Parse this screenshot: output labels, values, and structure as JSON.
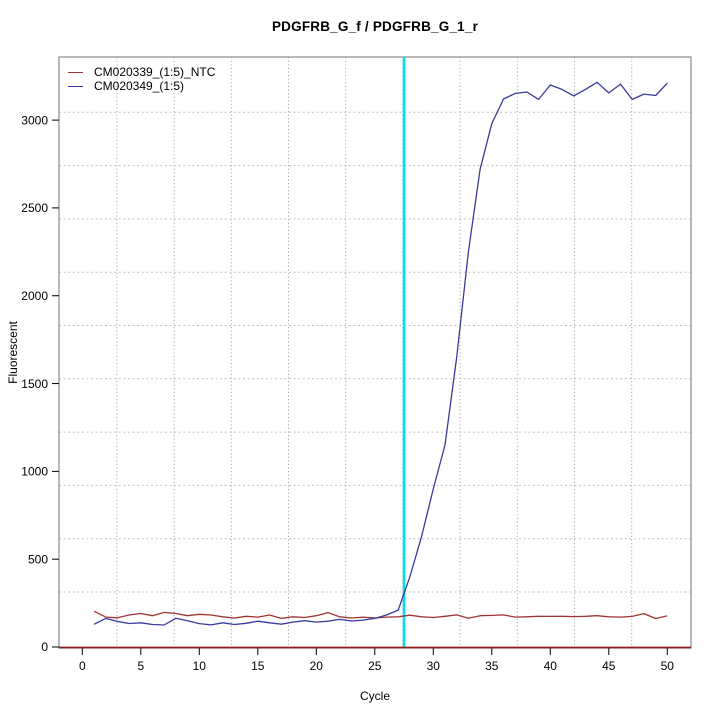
{
  "chart_data": {
    "type": "line",
    "title": "PDGFRB_G_f / PDGFRB_G_1_r",
    "xlabel": "Cycle",
    "ylabel": "Fluorescent",
    "xlim": [
      -2,
      52
    ],
    "ylim": [
      -30,
      3360
    ],
    "x_ticks": [
      0,
      5,
      10,
      15,
      20,
      25,
      30,
      35,
      40,
      45,
      50
    ],
    "y_ticks": [
      0,
      500,
      1000,
      1500,
      2000,
      2500,
      3000
    ],
    "grid": "dotted light-gray gridlines in both directions, not aligned with axis ticks",
    "legend_position": "top-left-inside",
    "threshold_line": {
      "orientation": "vertical",
      "x": 27.5,
      "color": "#00e0ea"
    },
    "baseline_zero_line": {
      "y": 0,
      "color": "#8f2020"
    },
    "x": [
      1,
      2,
      3,
      4,
      5,
      6,
      7,
      8,
      9,
      10,
      11,
      12,
      13,
      14,
      15,
      16,
      17,
      18,
      19,
      20,
      21,
      22,
      23,
      24,
      25,
      26,
      27,
      28,
      29,
      30,
      31,
      32,
      33,
      34,
      35,
      36,
      37,
      38,
      39,
      40,
      41,
      42,
      43,
      44,
      45,
      46,
      47,
      48,
      49,
      50
    ],
    "series": [
      {
        "name": "CM020339_(1:5)_NTC",
        "color": "#a03434",
        "values": [
          204,
          170,
          166,
          182,
          191,
          178,
          197,
          191,
          178,
          186,
          182,
          172,
          165,
          175,
          170,
          182,
          163,
          172,
          168,
          178,
          196,
          172,
          165,
          170,
          165,
          170,
          172,
          181,
          172,
          168,
          175,
          183,
          164,
          178,
          180,
          183,
          170,
          172,
          175,
          174,
          175,
          173,
          175,
          178,
          172,
          170,
          174,
          190,
          162,
          177
        ]
      },
      {
        "name": "CM020349_(1:5)",
        "color": "#3a3a9e",
        "values": [
          129,
          163,
          146,
          134,
          138,
          128,
          125,
          164,
          150,
          133,
          126,
          138,
          128,
          135,
          147,
          138,
          130,
          142,
          150,
          142,
          147,
          157,
          148,
          153,
          163,
          182,
          210,
          400,
          630,
          900,
          1150,
          1650,
          2250,
          2720,
          2980,
          3120,
          3152,
          3160,
          3118,
          3200,
          3175,
          3138,
          3175,
          3215,
          3155,
          3205,
          3118,
          3148,
          3140,
          3210
        ]
      }
    ],
    "colors": {
      "grid_horizontal": "#c2c2c2",
      "grid_vertical": "#a8a8a8",
      "plot_border": "#8a8a8a",
      "tick": "#000000",
      "background": "#ffffff"
    }
  }
}
